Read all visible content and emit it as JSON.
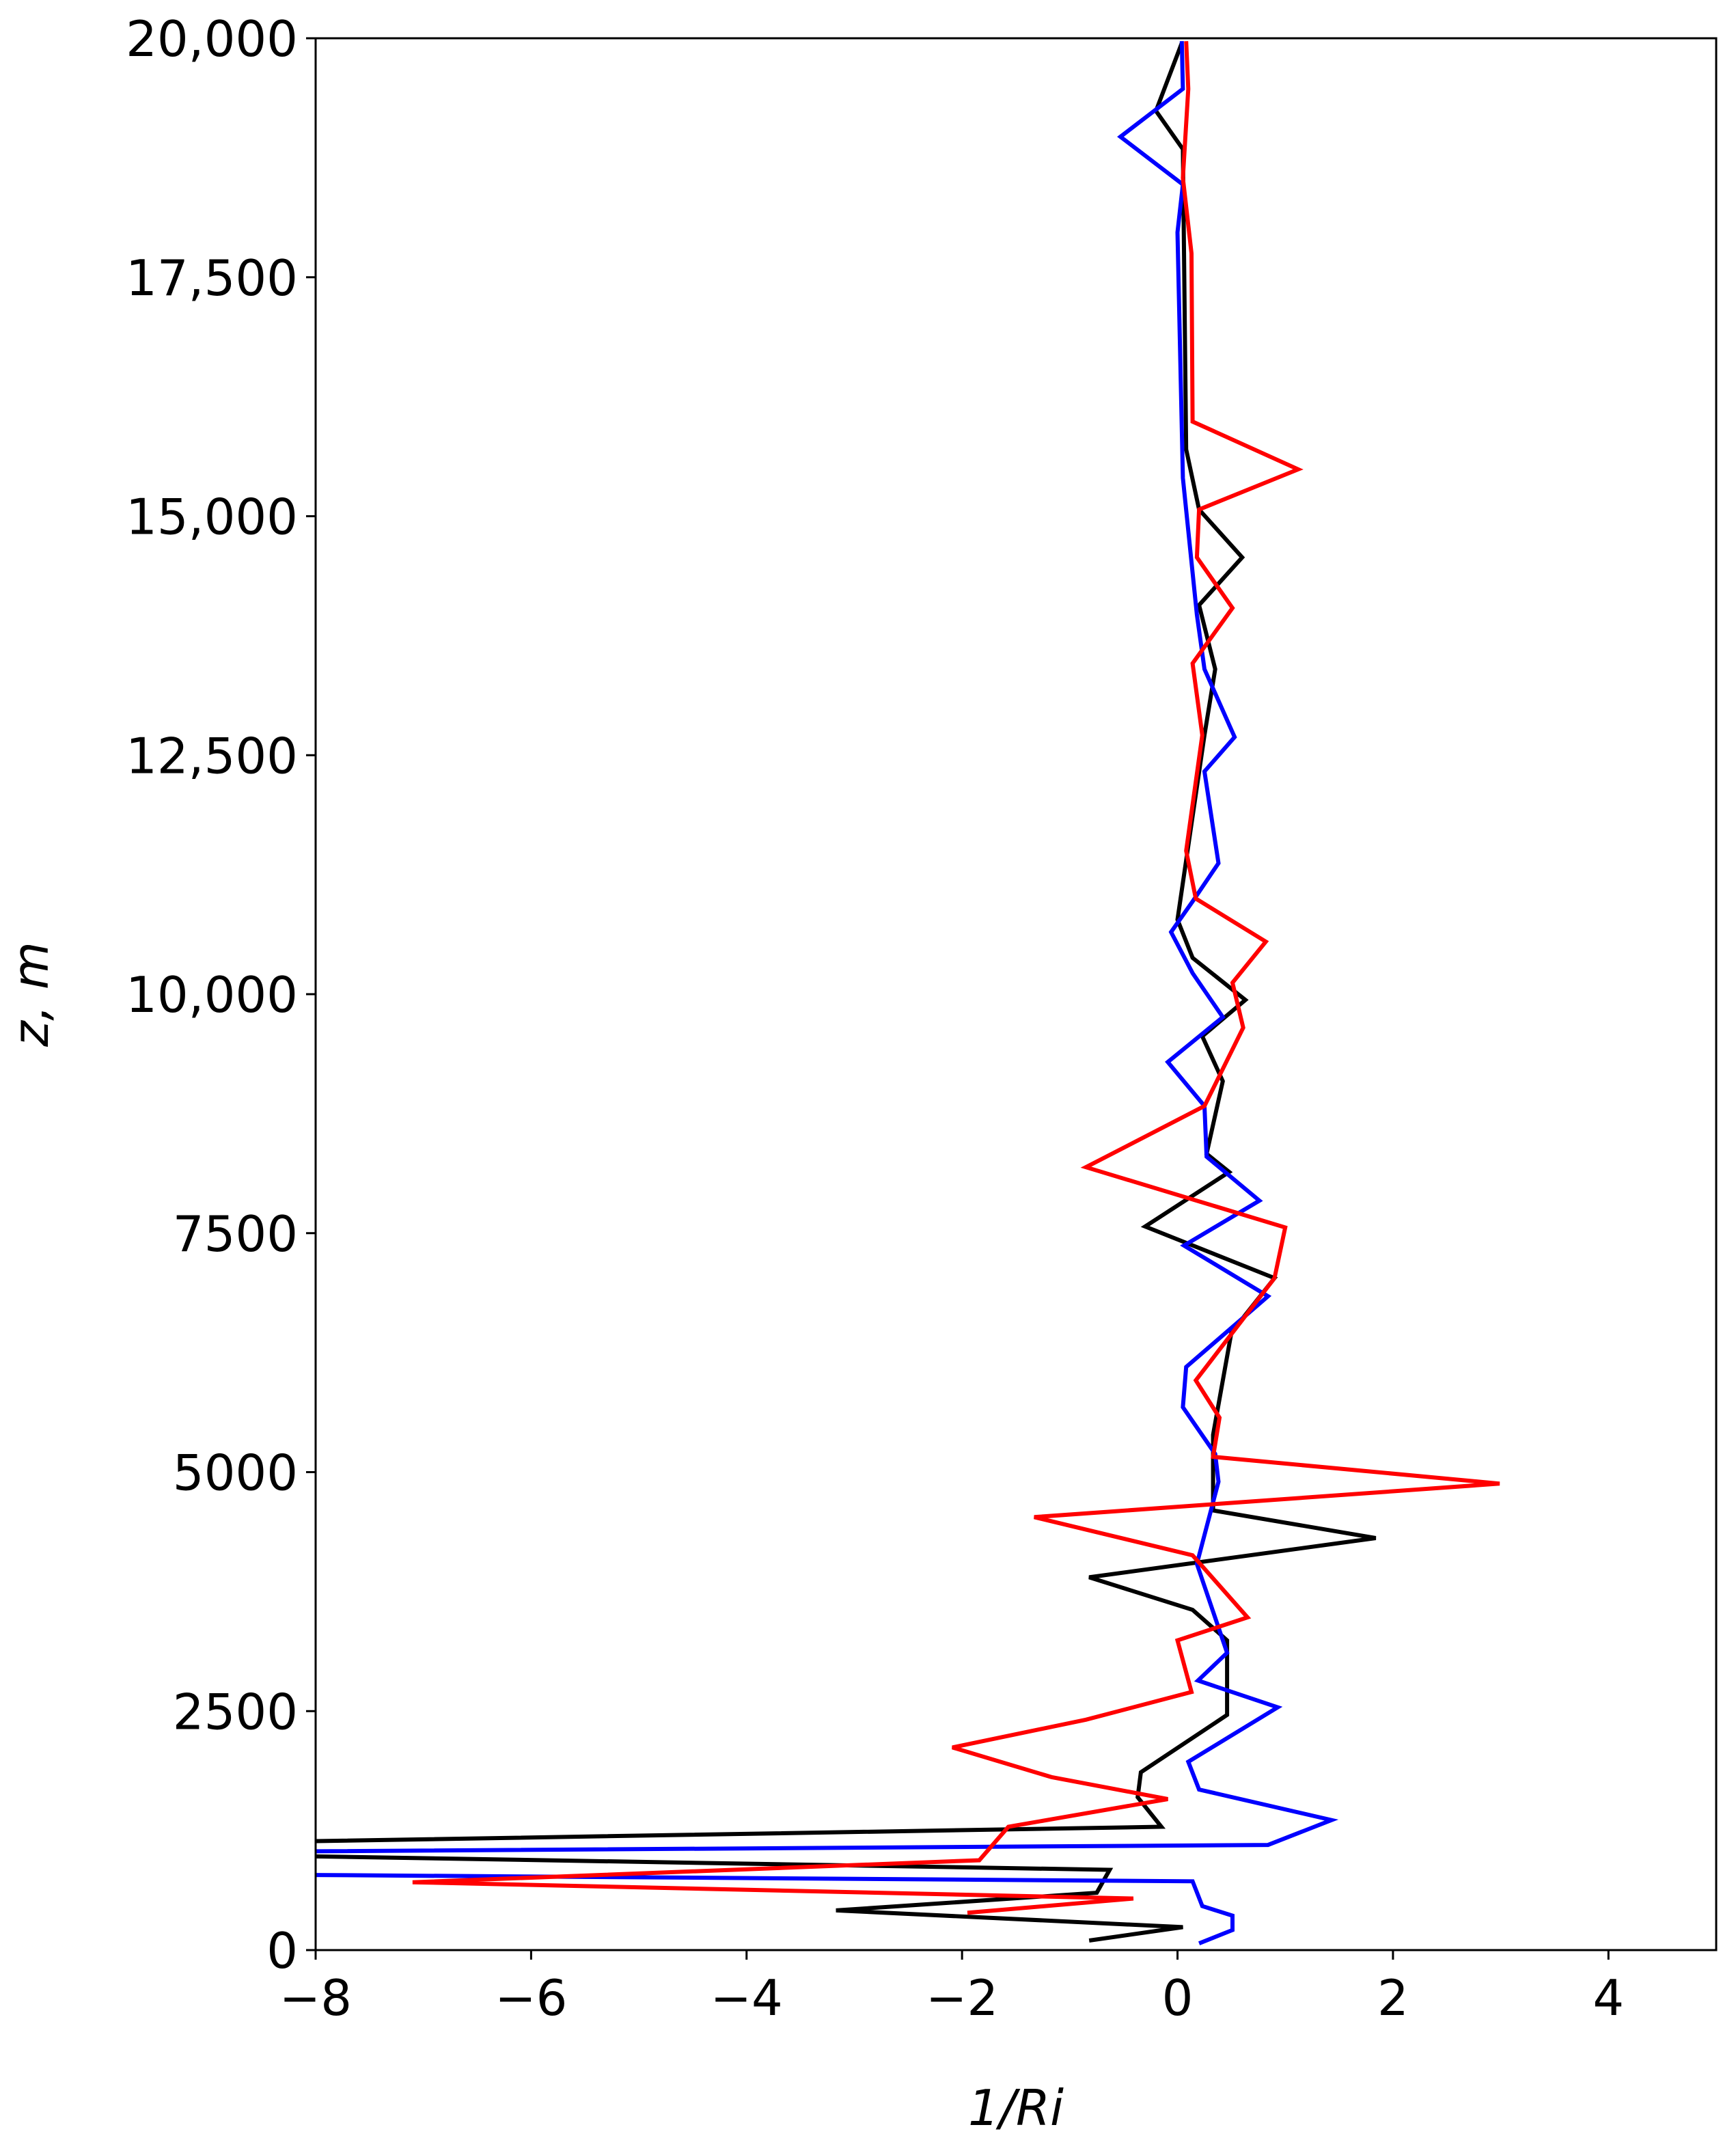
{
  "chart_data": {
    "type": "line",
    "x_label": "1/Ri",
    "y_label": "z, m",
    "xlim": [
      -8,
      5
    ],
    "xticks": [
      -8,
      -6,
      -4,
      -2,
      0,
      2,
      4
    ],
    "ylim": [
      0,
      20000
    ],
    "yticks": [
      0,
      2500,
      5000,
      7500,
      {
        "value": 10000,
        "label": "10,000"
      },
      {
        "value": 12500,
        "label": "12,500"
      },
      {
        "value": 15000,
        "label": "15,000"
      },
      {
        "value": 17500,
        "label": "17,500"
      },
      {
        "value": 20000,
        "label": "20,000"
      }
    ],
    "series": [
      {
        "color": "#000000",
        "x": [
          0.04,
          -0.2,
          0.05,
          0.08,
          0.2,
          0.6,
          0.2,
          0.35,
          0.25,
          0,
          0.14,
          0.63,
          0.23,
          0.42,
          0.27,
          0.48,
          -0.3,
          0.9,
          0.5,
          0.33,
          0.33,
          1.84,
          -0.82,
          0.14,
          0.46,
          0.46,
          -0.34,
          -0.37,
          -0.15,
          -8.5,
          -8.5,
          -0.63,
          -0.75,
          -3.17,
          0.05,
          -0.82
        ],
        "values": [
          19950,
          19240,
          18840,
          15700,
          15070,
          14570,
          14070,
          13400,
          12710,
          10780,
          10380,
          9940,
          9560,
          9090,
          8330,
          8140,
          7570,
          7030,
          6460,
          5390,
          4600,
          4310,
          3900,
          3560,
          3240,
          2460,
          1860,
          1600,
          1290,
          1130,
          990,
          840,
          600,
          415,
          240,
          100
        ]
      },
      {
        "color": "#0000ff",
        "x": [
          0.04,
          0.05,
          -0.53,
          0.05,
          0,
          0.05,
          0.18,
          0.25,
          0.53,
          0.25,
          0.38,
          0.14,
          -0.06,
          0.14,
          0.42,
          -0.09,
          0.25,
          0.27,
          0.76,
          0.06,
          0.84,
          0.08,
          0.05,
          0.35,
          0.38,
          0.18,
          0.46,
          0.19,
          0.93,
          0.1,
          0.2,
          1.43,
          0.84,
          -8.5,
          -8.5,
          0.14,
          0.23,
          0.51,
          0.51,
          0.2
        ],
        "values": [
          19970,
          19470,
          18970,
          18470,
          17970,
          15400,
          13970,
          13400,
          12690,
          12330,
          11370,
          10970,
          10650,
          10220,
          9760,
          9290,
          8830,
          8300,
          7840,
          7370,
          6840,
          6100,
          5680,
          5190,
          4900,
          4040,
          3110,
          2820,
          2540,
          1970,
          1680,
          1360,
          1100,
          1030,
          790,
          720,
          460,
          360,
          210,
          70
        ]
      },
      {
        "color": "#ff0000",
        "x": [
          0.08,
          0.1,
          0.05,
          0.13,
          0.14,
          1.12,
          0.2,
          0.18,
          0.51,
          0.14,
          0.23,
          0.08,
          0.17,
          0.82,
          0.51,
          0.61,
          0.25,
          -0.85,
          1.0,
          0.9,
          0.17,
          0.39,
          0.33,
          2.99,
          -1.33,
          0.14,
          0.65,
          0,
          0.13,
          -0.85,
          -2.09,
          -1.17,
          -0.09,
          -1.57,
          -1.84,
          -7.1,
          -0.41,
          -1.95
        ],
        "values": [
          19970,
          19470,
          18540,
          17750,
          15990,
          15490,
          15070,
          14570,
          14040,
          13460,
          12710,
          11500,
          11000,
          10550,
          10120,
          9650,
          8830,
          8190,
          7560,
          7030,
          5960,
          5570,
          5160,
          4880,
          4530,
          4130,
          3480,
          3240,
          2700,
          2410,
          2120,
          1810,
          1580,
          1290,
          940,
          710,
          540,
          390
        ]
      }
    ]
  }
}
